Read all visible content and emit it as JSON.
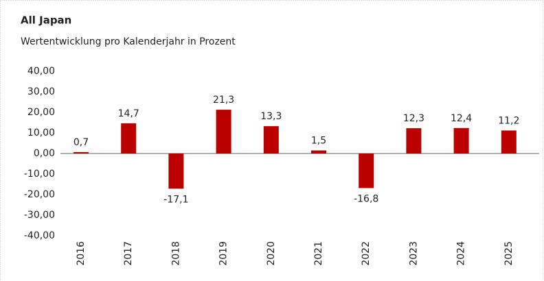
{
  "chart_data": {
    "type": "bar",
    "title": "All Japan",
    "subtitle": "Wertentwicklung pro Kalenderjahr in Prozent",
    "categories": [
      "2016",
      "2017",
      "2018",
      "2019",
      "2020",
      "2021",
      "2022",
      "2023",
      "2024",
      "2025"
    ],
    "values": [
      0.7,
      14.7,
      -17.1,
      21.3,
      13.3,
      1.5,
      -16.8,
      12.3,
      12.4,
      11.2
    ],
    "value_labels": [
      "0,7",
      "14,7",
      "-17,1",
      "21,3",
      "13,3",
      "1,5",
      "-16,8",
      "12,3",
      "12,4",
      "11,2"
    ],
    "color": "#bb0000",
    "ylim": [
      -40,
      40
    ],
    "yticks": [
      {
        "value": 40,
        "label": "40,00"
      },
      {
        "value": 30,
        "label": "30,00"
      },
      {
        "value": 20,
        "label": "20,00"
      },
      {
        "value": 10,
        "label": "10,00"
      },
      {
        "value": 0,
        "label": "0,00"
      },
      {
        "value": -10,
        "label": "-10,00"
      },
      {
        "value": -20,
        "label": "-20,00"
      },
      {
        "value": -30,
        "label": "-30,00"
      },
      {
        "value": -40,
        "label": "-40,00"
      }
    ],
    "grid": false
  }
}
